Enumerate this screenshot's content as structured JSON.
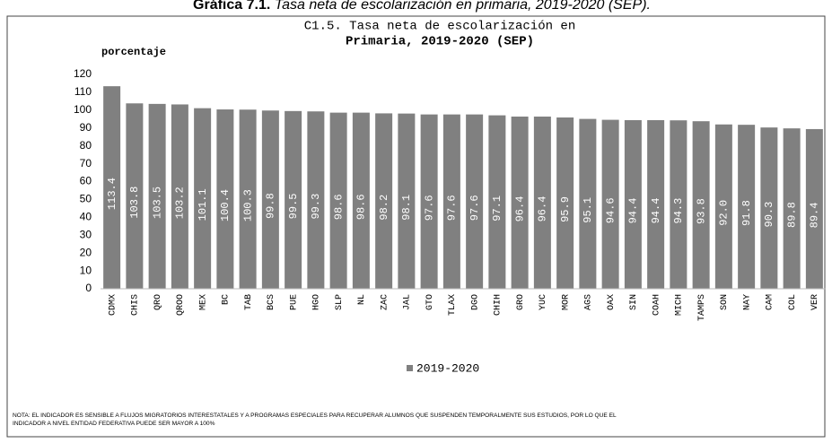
{
  "header": {
    "label": "Gráfica 7.1.",
    "text": "Tasa neta de escolarización en primaria, 2019-2020 (SEP)."
  },
  "chart_data": {
    "type": "bar",
    "title_lines": [
      "C1.5. Tasa neta de escolarización en",
      "Primaria, 2019-2020 (SEP)"
    ],
    "y_label": "porcentaje",
    "categories": [
      "CDMX",
      "CHIS",
      "QRO",
      "QROO",
      "MEX",
      "BC",
      "TAB",
      "BCS",
      "PUE",
      "HGO",
      "SLP",
      "NL",
      "ZAC",
      "JAL",
      "GTO",
      "TLAX",
      "DGO",
      "CHIH",
      "GRO",
      "YUC",
      "MOR",
      "AGS",
      "OAX",
      "SIN",
      "COAH",
      "MICH",
      "TAMPS",
      "SON",
      "NAY",
      "CAM",
      "COL",
      "VER"
    ],
    "series": [
      {
        "name": "2019-2020",
        "color": "#808080",
        "values": [
          113.4,
          103.8,
          103.5,
          103.2,
          101.1,
          100.4,
          100.3,
          99.8,
          99.5,
          99.3,
          98.6,
          98.6,
          98.2,
          98.1,
          97.6,
          97.6,
          97.6,
          97.1,
          96.4,
          96.4,
          95.9,
          95.1,
          94.6,
          94.4,
          94.4,
          94.3,
          93.8,
          92,
          91.8,
          90.3,
          89.8,
          89.4
        ],
        "value_labels": [
          "113.4",
          "103.8",
          "103.5",
          "103.2",
          "101.1",
          "100.4",
          "100.3",
          "99.8",
          "99.5",
          "99.3",
          "98.6",
          "98.6",
          "98.2",
          "98.1",
          "97.6",
          "97.6",
          "97.6",
          "97.1",
          "96.4",
          "96.4",
          "95.9",
          "95.1",
          "94.6",
          "94.4",
          "94.4",
          "94.3",
          "93.8",
          "92.0",
          "91.8",
          "90.3",
          "89.8",
          "89.4"
        ]
      }
    ],
    "ylim": [
      0,
      120
    ],
    "yticks": [
      0,
      10,
      20,
      30,
      40,
      50,
      60,
      70,
      80,
      90,
      100,
      110,
      120
    ],
    "grid": false,
    "legend": "bottom"
  },
  "note_lines": [
    "NOTA: EL INDICADOR  ES SENSIBLE A FLUJOS MIGRATORIOS INTERESTATALES Y A PROGRAMAS ESPECIALES PARA RECUPERAR  ALUMNOS QUE SUSPENDEN  TEMPORALMENTE SUS ESTUDIOS, POR LO QUE EL",
    "INDICADOR  A NIVEL ENTIDAD FEDERATIVA PUEDE SER MAYOR A 100%"
  ]
}
